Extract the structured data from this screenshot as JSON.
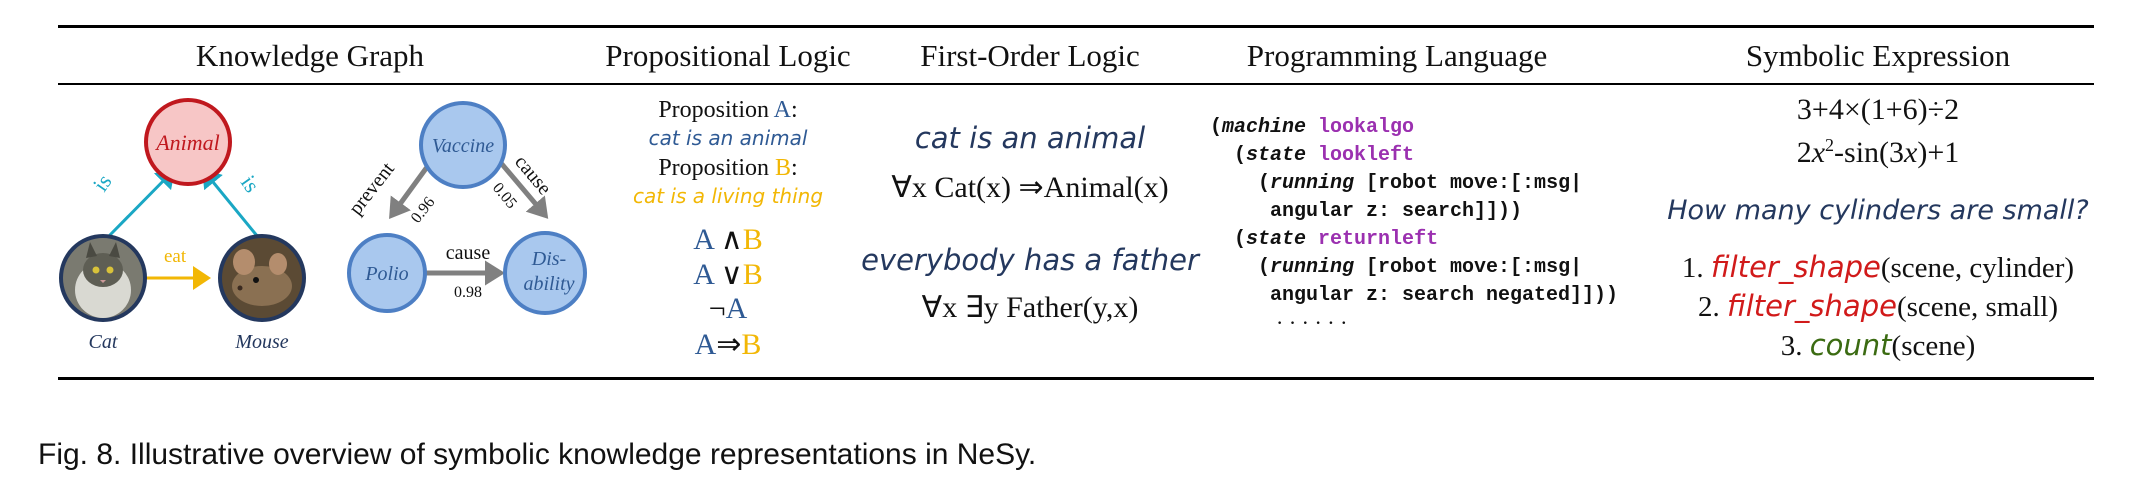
{
  "headers": {
    "kg": "Knowledge Graph",
    "prop": "Propositional Logic",
    "fol": "First-Order Logic",
    "prog": "Programming Language",
    "sym": "Symbolic Expression"
  },
  "kg": {
    "left": {
      "animal": "Animal",
      "cat": "Cat",
      "mouse": "Mouse",
      "is_left": "is",
      "is_right": "is",
      "eat": "eat"
    },
    "right": {
      "vaccine": "Vaccine",
      "polio": "Polio",
      "disability": "Dis-\nability",
      "disability_l1": "Dis-",
      "disability_l2": "ability",
      "prevent": "prevent",
      "cause_top": "cause",
      "cause_bottom": "cause",
      "w_prevent": "0.96",
      "w_cause_top": "0.05",
      "w_cause_bottom": "0.98"
    }
  },
  "prop": {
    "pA_prefix": "Proposition ",
    "pA_letter": "A",
    "pA_colon": ":",
    "pA_text": "cat is an animal",
    "pB_prefix": "Proposition ",
    "pB_letter": "B",
    "pB_colon": ":",
    "pB_text": "cat is a living thing",
    "f1": [
      "A",
      " ∧",
      "B"
    ],
    "f2": [
      "A",
      " ∨",
      "B"
    ],
    "f3": [
      "¬",
      "A"
    ],
    "f4": [
      "A",
      "⇒",
      "B"
    ]
  },
  "fol": {
    "s1": "cat is an animal",
    "f1": "∀x Cat(x) ⇒Animal(x)",
    "s2": "everybody has a father",
    "f2": "∀x ∃y Father(y,x)"
  },
  "prog": {
    "l1_a": "(",
    "l1_kw": "machine",
    "l1_name": "lookalgo",
    "l2_a": "(",
    "l2_kw": "state",
    "l2_name": "lookleft",
    "l3_a": "(",
    "l3_kw": "running",
    "l3_b": " [robot move:[:msg|",
    "l4": "angular z: search]]))",
    "l5_a": "(",
    "l5_kw": "state",
    "l5_name": "returnleft",
    "l6_a": "(",
    "l6_kw": "running",
    "l6_b": " [robot move:[:msg|",
    "l7": "angular z: search negated]]))",
    "dots": "· · · · · ·"
  },
  "sym": {
    "e1": "3+4×(1+6)÷2",
    "e2_a": "2",
    "e2_x": "x",
    "e2_sup": "2",
    "e2_b": "-sin(3",
    "e2_x2": "x",
    "e2_c": ")+1",
    "question": "How many cylinders are small?",
    "s1_num": "1. ",
    "s1_fn": "filter_shape",
    "s1_args": "(scene, cylinder)",
    "s2_num": "2. ",
    "s2_fn": "filter_shape",
    "s2_args": "(scene, small)",
    "s3_num": "3. ",
    "s3_fn": "count",
    "s3_args": "(scene)"
  },
  "caption": "Fig. 8. Illustrative overview of symbolic knowledge representations in NeSy.",
  "colors": {
    "blue": "#2f5a94",
    "yellow": "#f2b705",
    "purple": "#9b30b0",
    "red": "#d11a1a",
    "green": "#3b6b12",
    "teal": "#1aa7c4",
    "navy": "#24385e",
    "animal_fill": "#f7c6c6",
    "animal_stroke": "#c0181e",
    "node_fill": "#a9c8ee",
    "node_stroke": "#4d7fc4"
  }
}
